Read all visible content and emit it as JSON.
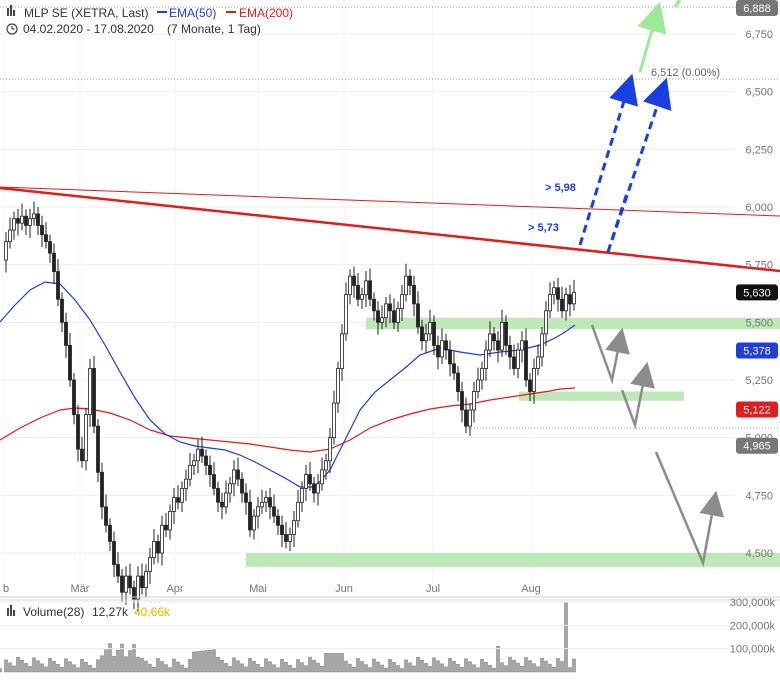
{
  "header": {
    "symbol_label": "MLP SE (XETRA, Last)",
    "ema50_label": "EMA(50)",
    "ema200_label": "EMA(200)",
    "date_range": "04.02.2020 - 17.08.2020",
    "duration": "(7 Monate, 1 Tag)"
  },
  "colors": {
    "candle": "#222222",
    "ema50": "#1f3fd8",
    "ema200": "#e21c1c",
    "trendline": "#e21c1c",
    "support_zone": "#b8e6b0",
    "projection_blue": "#1a3fe0",
    "projection_green": "#9ee89a",
    "projection_gray": "#8c8c8c",
    "volume_bar": "#a6a6a6"
  },
  "chart_data": [
    {
      "type": "candlestick",
      "title": "MLP SE (XETRA, Last)",
      "x_tick_labels": [
        "b",
        "Mär",
        "Apr",
        "Mai",
        "Jun",
        "Jul",
        "Aug"
      ],
      "y_tick_labels": [
        "4,500",
        "4,750",
        "5,000",
        "5,250",
        "5,500",
        "5,750",
        "6,000",
        "6,250",
        "6,500",
        "6,750"
      ],
      "y_range": [
        4.3,
        6.9
      ],
      "grid": true,
      "price_tags": [
        {
          "label": "6,888",
          "value": 6.888,
          "style": "gray"
        },
        {
          "label": "5,630",
          "value": 5.63,
          "style": "black"
        },
        {
          "label": "5,378",
          "value": 5.378,
          "style": "blue"
        },
        {
          "label": "5,122",
          "value": 5.122,
          "style": "red"
        },
        {
          "label": "4,965",
          "value": 4.965,
          "style": "gray"
        }
      ],
      "annotations": {
        "target_label": "6,512 (0.00%)",
        "target_value": 6.512,
        "breakout_high_label": "> 5,98",
        "breakout_low_label": "> 5,73"
      },
      "support_zones": [
        {
          "low": 5.47,
          "high": 5.52
        },
        {
          "low": 5.16,
          "high": 5.2
        },
        {
          "low": 4.44,
          "high": 4.5
        }
      ],
      "trendline": {
        "start_value": 5.98,
        "end_value": 5.63
      },
      "series": [
        {
          "name": "EMA(50)",
          "last_value": 5.378
        },
        {
          "name": "EMA(200)",
          "last_value": 5.122
        }
      ]
    },
    {
      "type": "bar",
      "title": "Volume(28)",
      "volume_value": "12,27k",
      "volume_avg": "40,66k",
      "y_tick_labels": [
        "100,000k",
        "200,000k",
        "300,000k"
      ],
      "ylim": [
        0,
        320000
      ]
    }
  ]
}
